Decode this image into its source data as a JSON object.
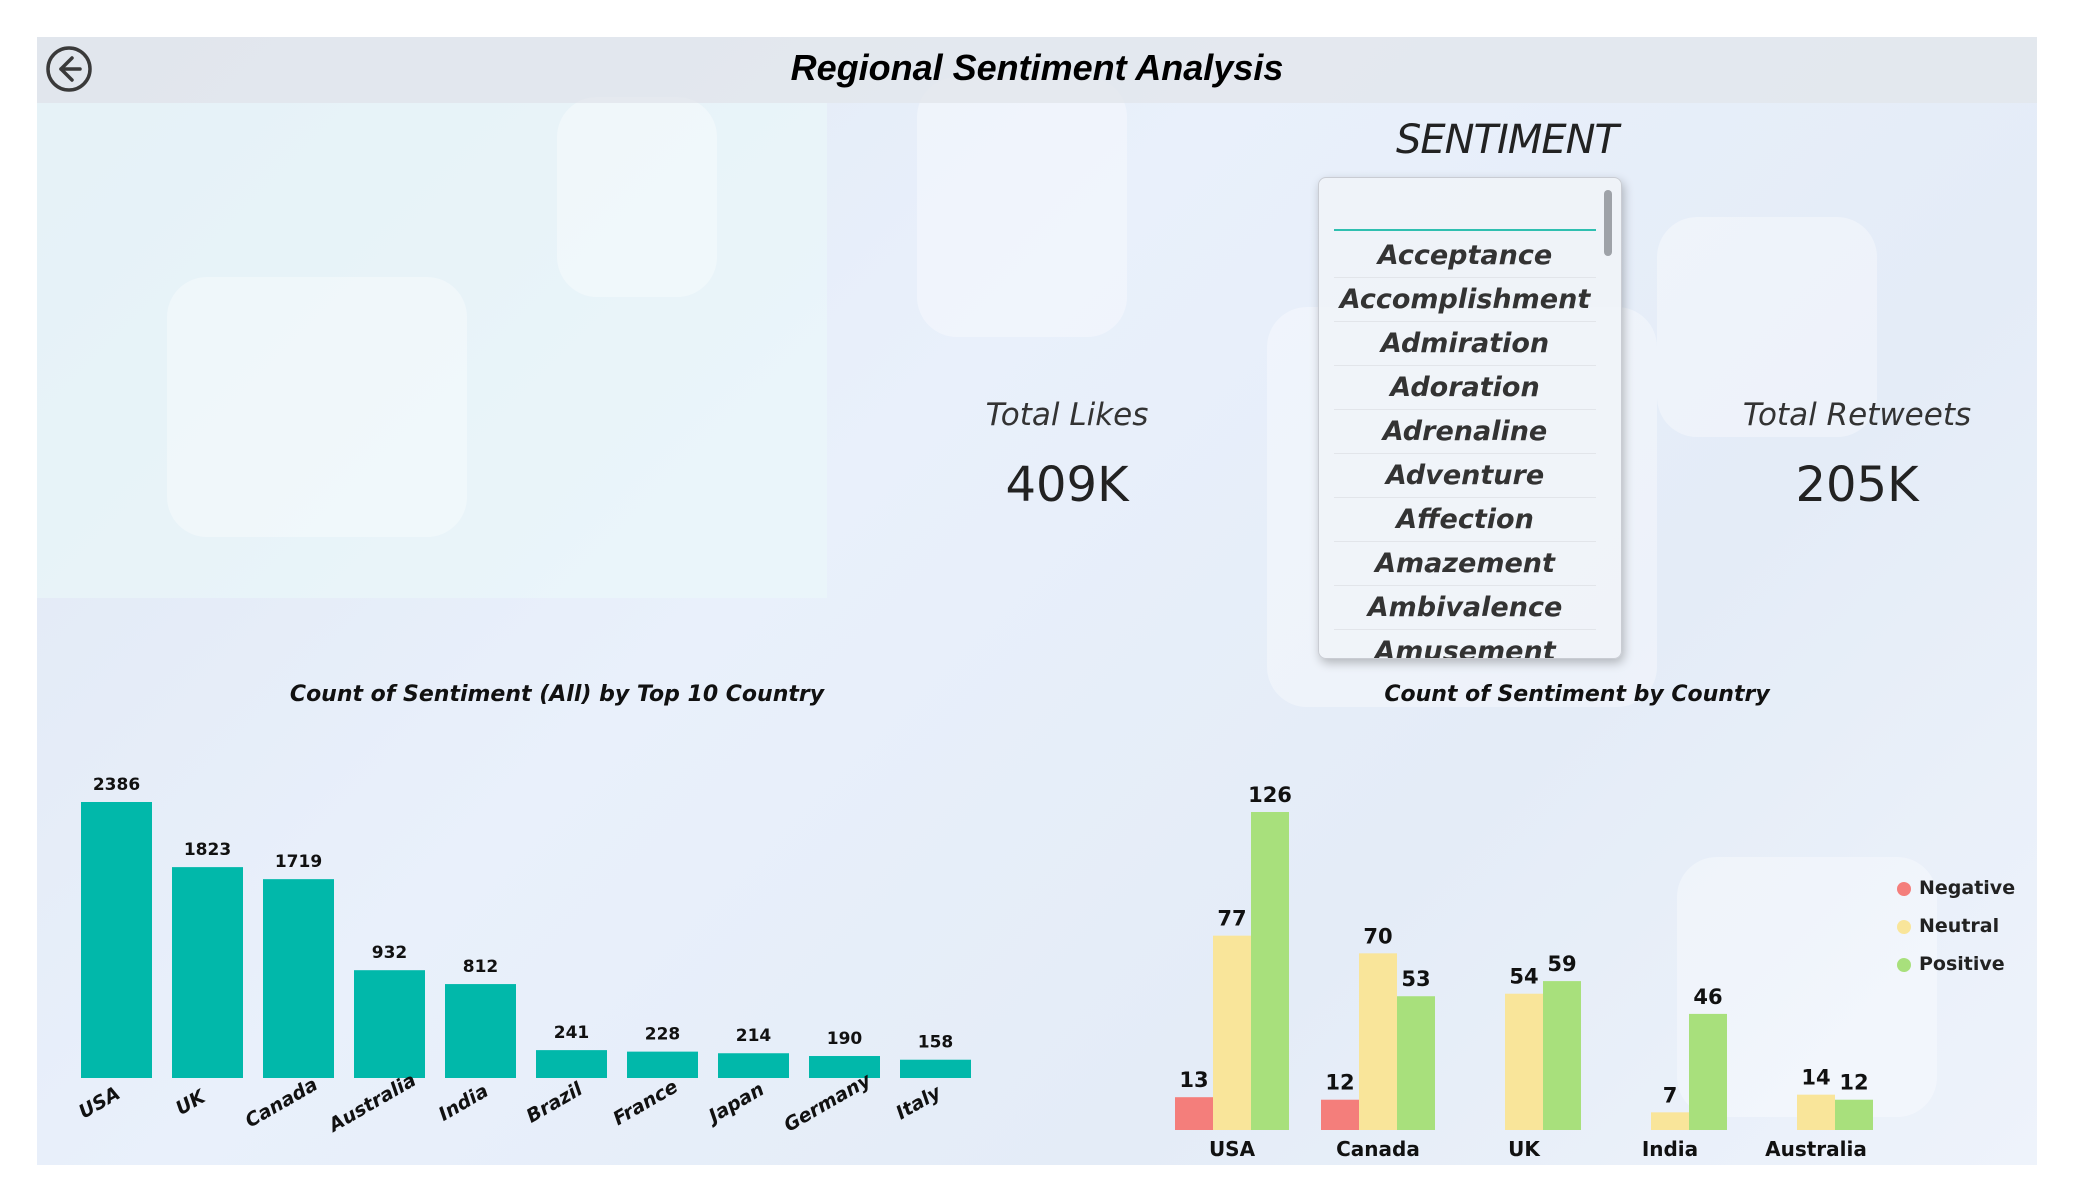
{
  "header": {
    "title": "Regional Sentiment Analysis",
    "back_icon": "back-arrow-icon"
  },
  "slicer": {
    "title": "SENTIMENT",
    "items": [
      "Acceptance",
      "Accomplishment",
      "Admiration",
      "Adoration",
      "Adrenaline",
      "Adventure",
      "Affection",
      "Amazement",
      "Ambivalence",
      "Amusement"
    ]
  },
  "kpis": {
    "likes": {
      "label": "Total Likes",
      "value": "409K"
    },
    "retweets": {
      "label": "Total Retweets",
      "value": "205K"
    }
  },
  "colors": {
    "bar": "#01b8aa",
    "negative": "#f47e7b",
    "neutral": "#f9e59a",
    "positive": "#a8e07c"
  },
  "chart_data": [
    {
      "type": "bar",
      "title": "Count of Sentiment (All) by Top 10 Country",
      "categories": [
        "USA",
        "UK",
        "Canada",
        "Australia",
        "India",
        "Brazil",
        "France",
        "Japan",
        "Germany",
        "Italy"
      ],
      "values": [
        2386,
        1823,
        1719,
        932,
        812,
        241,
        228,
        214,
        190,
        158
      ],
      "ylim": [
        0,
        2386
      ],
      "xlabel": "",
      "ylabel": "",
      "grid": false
    },
    {
      "type": "bar",
      "title": "Count of Sentiment by Country",
      "categories": [
        "USA",
        "Canada",
        "UK",
        "India",
        "Australia"
      ],
      "series": [
        {
          "name": "Negative",
          "values": [
            13,
            12,
            null,
            null,
            null
          ]
        },
        {
          "name": "Neutral",
          "values": [
            77,
            70,
            54,
            7,
            14
          ]
        },
        {
          "name": "Positive",
          "values": [
            126,
            53,
            59,
            46,
            12
          ]
        }
      ],
      "ylim": [
        0,
        126
      ],
      "legend": "right",
      "grid": false
    }
  ]
}
